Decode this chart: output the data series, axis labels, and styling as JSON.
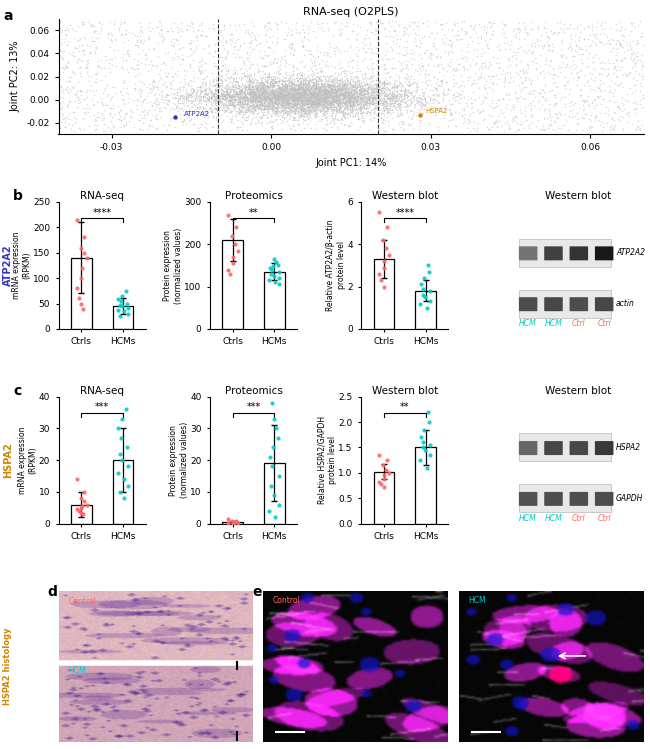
{
  "title_panel_a": "RNA-seq (O2PLS)",
  "panel_a_xlabel": "Joint PC1: 14%",
  "panel_a_ylabel": "Joint PC2: 13%",
  "panel_a_xlim": [
    -0.04,
    0.07
  ],
  "panel_a_ylim": [
    -0.03,
    0.07
  ],
  "panel_a_xticks": [
    -0.03,
    0.0,
    0.03,
    0.06
  ],
  "panel_a_yticks": [
    -0.02,
    0.0,
    0.02,
    0.04,
    0.06
  ],
  "panel_a_vlines": [
    -0.01,
    0.02
  ],
  "atp2a2_point": [
    -0.018,
    -0.015
  ],
  "hspa2_point": [
    0.028,
    -0.013
  ],
  "scatter_color": "#c0c0c0",
  "atp2a2_color": "#3333cc",
  "hspa2_color": "#cc8800",
  "panel_b_label": "ATP2A2",
  "panel_b_color": "#3333cc",
  "panel_b_rna_title": "RNA-seq",
  "panel_b_rna_ylabel": "mRNA expression\n(RPKM)",
  "panel_b_rna_ylim": [
    0,
    250
  ],
  "panel_b_rna_yticks": [
    0,
    50,
    100,
    150,
    200,
    250
  ],
  "panel_b_rna_ctrl_bar": 140,
  "panel_b_rna_hcm_bar": 45,
  "panel_b_rna_ctrl_err": 70,
  "panel_b_rna_hcm_err": 15,
  "panel_b_rna_ctrl_dots": [
    215,
    180,
    160,
    150,
    140,
    120,
    100,
    80,
    60,
    50,
    40
  ],
  "panel_b_rna_hcm_dots": [
    75,
    65,
    58,
    55,
    50,
    48,
    45,
    42,
    38,
    35,
    30,
    25
  ],
  "panel_b_rna_sig": "****",
  "panel_b_prot_title": "Proteomics",
  "panel_b_prot_ylabel": "Protein expression\n(normalized values)",
  "panel_b_prot_ylim": [
    0,
    300
  ],
  "panel_b_prot_yticks": [
    0,
    100,
    200,
    300
  ],
  "panel_b_prot_ctrl_bar": 210,
  "panel_b_prot_hcm_bar": 135,
  "panel_b_prot_ctrl_err": 50,
  "panel_b_prot_hcm_err": 20,
  "panel_b_prot_ctrl_dots": [
    270,
    240,
    220,
    200,
    185,
    170,
    155,
    140,
    130
  ],
  "panel_b_prot_hcm_dots": [
    165,
    158,
    152,
    148,
    145,
    140,
    135,
    130,
    125,
    120,
    115,
    110,
    105
  ],
  "panel_b_prot_sig": "**",
  "panel_b_wb_title": "Western blot",
  "panel_b_wb_ylabel": "Relative ATP2A2/β-actin\nprotein level",
  "panel_b_wb_ylim": [
    0,
    6
  ],
  "panel_b_wb_yticks": [
    0,
    2,
    4,
    6
  ],
  "panel_b_wb_ctrl_bar": 3.3,
  "panel_b_wb_hcm_bar": 1.8,
  "panel_b_wb_ctrl_err": 0.9,
  "panel_b_wb_hcm_err": 0.5,
  "panel_b_wb_ctrl_dots": [
    5.5,
    4.8,
    4.2,
    3.8,
    3.5,
    3.2,
    2.9,
    2.6,
    2.3,
    2.0
  ],
  "panel_b_wb_hcm_dots": [
    3.0,
    2.7,
    2.4,
    2.1,
    1.9,
    1.8,
    1.6,
    1.5,
    1.3,
    1.2,
    1.0
  ],
  "panel_b_wb_sig": "****",
  "panel_c_label": "HSPA2",
  "panel_c_color": "#cc8800",
  "panel_c_rna_title": "RNA-seq",
  "panel_c_rna_ylabel": "mRNA expression\n(RPKM)",
  "panel_c_rna_ylim": [
    0,
    40
  ],
  "panel_c_rna_yticks": [
    0,
    10,
    20,
    30,
    40
  ],
  "panel_c_rna_ctrl_bar": 6,
  "panel_c_rna_hcm_bar": 20,
  "panel_c_rna_ctrl_err": 4,
  "panel_c_rna_hcm_err": 10,
  "panel_c_rna_ctrl_dots": [
    14,
    10,
    8,
    7,
    6,
    5.5,
    5,
    4.5,
    4,
    3.5,
    3
  ],
  "panel_c_rna_hcm_dots": [
    36,
    33,
    30,
    27,
    24,
    22,
    20,
    18,
    16,
    14,
    12,
    10,
    8
  ],
  "panel_c_rna_sig": "***",
  "panel_c_prot_title": "Proteomics",
  "panel_c_prot_ylabel": "Protein expression\n(normalized values)",
  "panel_c_prot_ylim": [
    0,
    40
  ],
  "panel_c_prot_yticks": [
    0,
    10,
    20,
    30,
    40
  ],
  "panel_c_prot_ctrl_bar": 0.5,
  "panel_c_prot_hcm_bar": 19,
  "panel_c_prot_ctrl_err": 0.3,
  "panel_c_prot_hcm_err": 12,
  "panel_c_prot_ctrl_dots": [
    1.5,
    1.0,
    0.8,
    0.5,
    0.3,
    0.2,
    0.1,
    0.1
  ],
  "panel_c_prot_hcm_dots": [
    38,
    33,
    30,
    27,
    24,
    21,
    18,
    15,
    12,
    9,
    6,
    4,
    2
  ],
  "panel_c_prot_sig": "***",
  "panel_c_wb_title": "Western blot",
  "panel_c_wb_ylabel": "Relative HSPA2/GAPDH\nprotein level",
  "panel_c_wb_ylim": [
    0,
    2.5
  ],
  "panel_c_wb_yticks": [
    0.0,
    0.5,
    1.0,
    1.5,
    2.0,
    2.5
  ],
  "panel_c_wb_ctrl_bar": 1.02,
  "panel_c_wb_hcm_bar": 1.5,
  "panel_c_wb_ctrl_err": 0.15,
  "panel_c_wb_hcm_err": 0.35,
  "panel_c_wb_ctrl_dots": [
    1.35,
    1.25,
    1.15,
    1.05,
    1.0,
    0.95,
    0.88,
    0.82,
    0.78,
    0.72
  ],
  "panel_c_wb_hcm_dots": [
    2.2,
    2.0,
    1.85,
    1.7,
    1.6,
    1.55,
    1.5,
    1.45,
    1.35,
    1.25,
    1.1
  ],
  "panel_c_wb_sig": "**",
  "ctrl_color": "#ff6666",
  "hcm_color": "#00cccc",
  "wb_labels_b": [
    "ATP2A2",
    "actin"
  ],
  "wb_labels_c": [
    "HSPA2",
    "GAPDH"
  ],
  "wb_sample_labels": [
    "HCM",
    "HCM",
    "Ctrl",
    "Ctrl"
  ],
  "wb_sample_colors": [
    "#00cccc",
    "#00cccc",
    "#ff6666",
    "#ff6666"
  ],
  "panel_d_label_ctrl": "Control",
  "panel_d_label_hcm": "HCM",
  "panel_d_color": "#cc8800",
  "panel_e_label_ctrl": "Control",
  "panel_e_label_hcm": "HCM",
  "panel_e_hcm_color": "#00cccc"
}
